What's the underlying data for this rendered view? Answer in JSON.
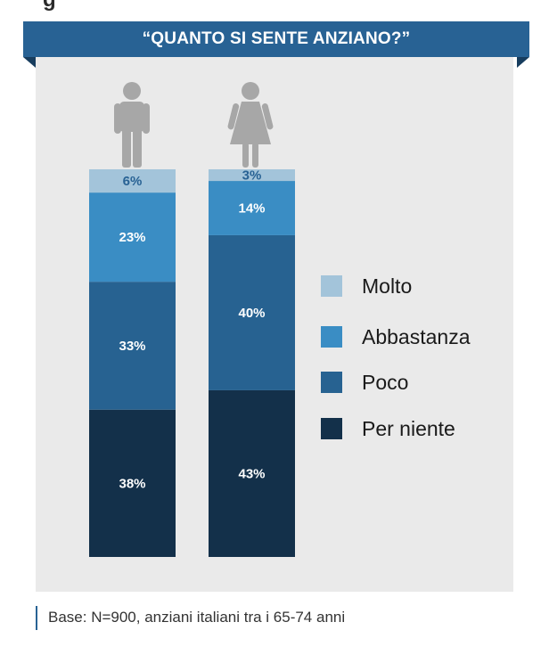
{
  "chart_data": {
    "type": "bar",
    "stacked": true,
    "orientation": "vertical",
    "title": "“QUANTO SI SENTE ANZIANO?”",
    "categories": [
      "male-figure",
      "female-figure"
    ],
    "series": [
      {
        "name": "Per niente",
        "values": [
          38,
          43
        ],
        "color": "#13304a"
      },
      {
        "name": "Poco",
        "values": [
          33,
          40
        ],
        "color": "#276291"
      },
      {
        "name": "Abbastanza",
        "values": [
          23,
          14
        ],
        "color": "#3a8dc4"
      },
      {
        "name": "Molto",
        "values": [
          6,
          3
        ],
        "color": "#a3c4da"
      }
    ],
    "data_labels": [
      [
        "38%",
        "43%"
      ],
      [
        "33%",
        "40%"
      ],
      [
        "23%",
        "14%"
      ],
      [
        "6%",
        "3%"
      ]
    ],
    "label_colors": [
      "#ffffff",
      "#ffffff",
      "#ffffff",
      "#286294"
    ],
    "legend_position": "right",
    "legend_order": [
      3,
      2,
      1,
      0
    ],
    "ylim": [
      0,
      100
    ],
    "grid": false
  },
  "icons": [
    "male-icon",
    "female-icon"
  ],
  "footnote": "Base: N=900, anziani italiani tra i 65-74 anni",
  "colors": {
    "banner": "#286294",
    "panel": "#eaeaea",
    "icon": "#a7a7a7"
  }
}
